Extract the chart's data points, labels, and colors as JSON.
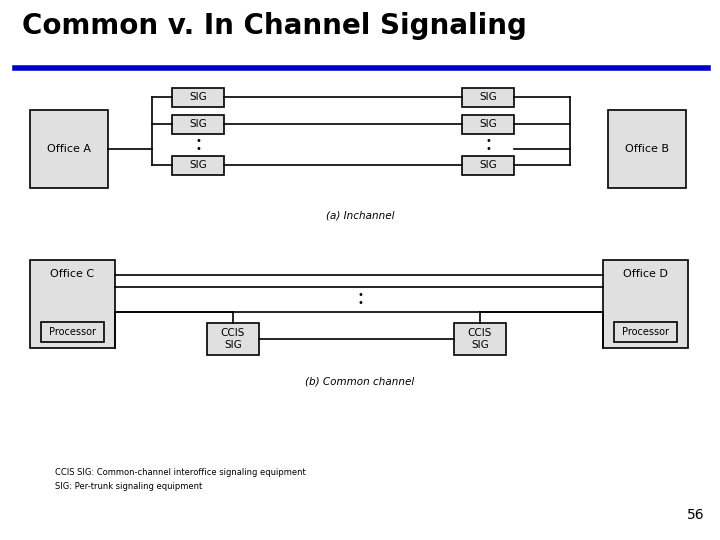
{
  "title": "Common v. In Channel Signaling",
  "title_fontsize": 20,
  "title_color": "#000000",
  "underline_color": "#0000CC",
  "bg_color": "#ffffff",
  "box_fill": "#e0e0e0",
  "box_edge": "#000000",
  "page_num": "56",
  "caption_a": "(a) Inchannel",
  "caption_b": "(b) Common channel",
  "footnote1": "CCIS SIG: Common-channel interoffice signaling equipment",
  "footnote2": "SIG: Per-trunk signaling equipment"
}
